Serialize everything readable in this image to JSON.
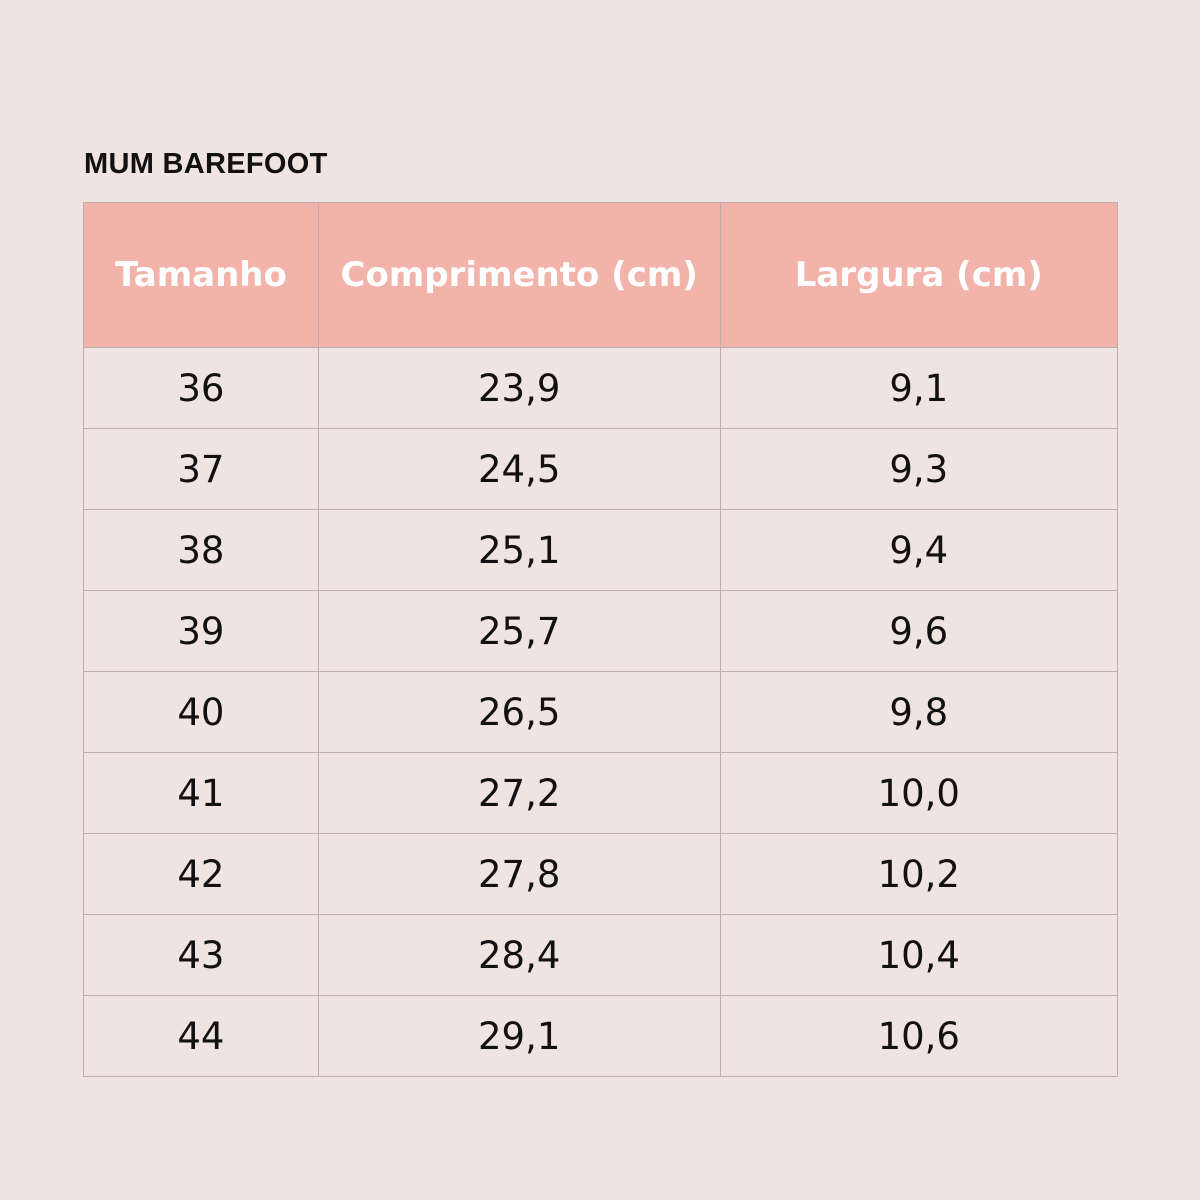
{
  "header": {
    "title": "MUM BAREFOOT"
  },
  "table": {
    "columns": [
      "Tamanho",
      "Comprimento (cm)",
      "Largura (cm)"
    ],
    "rows": [
      [
        "36",
        "23,9",
        "9,1"
      ],
      [
        "37",
        "24,5",
        "9,3"
      ],
      [
        "38",
        "25,1",
        "9,4"
      ],
      [
        "39",
        "25,7",
        "9,6"
      ],
      [
        "40",
        "26,5",
        "9,8"
      ],
      [
        "41",
        "27,2",
        "10,0"
      ],
      [
        "42",
        "27,8",
        "10,2"
      ],
      [
        "43",
        "28,4",
        "10,4"
      ],
      [
        "44",
        "29,1",
        "10,6"
      ]
    ]
  }
}
